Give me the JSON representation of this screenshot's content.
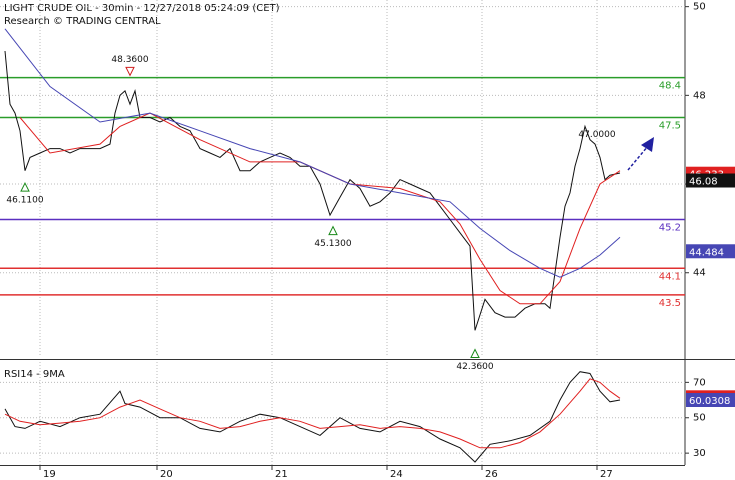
{
  "chart_data": [
    {
      "type": "line",
      "title": "LIGHT CRUDE OIL - 30min - 12/27/2018 05:24:09 (CET)",
      "subtitle": "Research © TRADING CENTRAL",
      "xlim": [
        0,
        137
      ],
      "ylim": [
        42.1,
        50.15
      ],
      "yticks": [
        44,
        46,
        48,
        50
      ],
      "xticks": [
        {
          "value": 8,
          "label": "19"
        },
        {
          "value": 31.4,
          "label": "20"
        },
        {
          "value": 54.4,
          "label": "21"
        },
        {
          "value": 77.4,
          "label": "24"
        },
        {
          "value": 96.4,
          "label": "26"
        },
        {
          "value": 119.4,
          "label": "27"
        }
      ],
      "grid": true,
      "series": [
        {
          "color": "#111111",
          "x": [
            1,
            2,
            3,
            4,
            5,
            6,
            8,
            10,
            12,
            14,
            16,
            18,
            20,
            22,
            23,
            24,
            25,
            26,
            27,
            28,
            30,
            32,
            34,
            36,
            38,
            40,
            42,
            44,
            46,
            48,
            50,
            52,
            54,
            56,
            58,
            60,
            62,
            64,
            66,
            68,
            70,
            72,
            74,
            76,
            78,
            80,
            82,
            84,
            86,
            88,
            90,
            92,
            94,
            95,
            97,
            99,
            101,
            103,
            105,
            107,
            109,
            110,
            111,
            112,
            113,
            114,
            115,
            116,
            117,
            118,
            119,
            120,
            121,
            122,
            124
          ],
          "values": [
            49.0,
            47.8,
            47.6,
            47.2,
            46.3,
            46.6,
            46.7,
            46.8,
            46.8,
            46.7,
            46.8,
            46.8,
            46.8,
            46.9,
            47.6,
            48.0,
            48.1,
            47.8,
            48.1,
            47.5,
            47.5,
            47.4,
            47.5,
            47.3,
            47.2,
            46.8,
            46.7,
            46.6,
            46.8,
            46.3,
            46.3,
            46.5,
            46.6,
            46.7,
            46.6,
            46.4,
            46.4,
            46.0,
            45.3,
            45.7,
            46.1,
            45.9,
            45.5,
            45.6,
            45.8,
            46.1,
            46.0,
            45.9,
            45.8,
            45.5,
            45.2,
            44.9,
            44.6,
            42.7,
            43.4,
            43.1,
            43.0,
            43.0,
            43.2,
            43.3,
            43.3,
            43.2,
            44.0,
            44.8,
            45.5,
            45.8,
            46.4,
            46.8,
            47.3,
            47.0,
            46.9,
            46.6,
            46.1,
            46.2,
            46.25
          ]
        },
        {
          "color": "#e02020",
          "x": [
            4,
            10,
            20,
            24,
            30,
            40,
            50,
            60,
            70,
            80,
            88,
            92,
            96,
            100,
            104,
            108,
            112,
            116,
            120,
            124
          ],
          "values": [
            47.5,
            46.7,
            46.9,
            47.3,
            47.6,
            47.0,
            46.5,
            46.5,
            46.0,
            45.9,
            45.6,
            45.1,
            44.3,
            43.6,
            43.3,
            43.3,
            43.8,
            45.0,
            46.0,
            46.3
          ]
        },
        {
          "color": "#4646b4",
          "x": [
            1,
            10,
            20,
            30,
            40,
            50,
            60,
            70,
            80,
            90,
            96,
            102,
            108,
            112,
            116,
            120,
            124
          ],
          "values": [
            49.5,
            48.2,
            47.4,
            47.6,
            47.2,
            46.8,
            46.5,
            46.0,
            45.8,
            45.6,
            45.0,
            44.5,
            44.1,
            43.9,
            44.1,
            44.4,
            44.8
          ]
        }
      ],
      "levels": [
        {
          "value": 48.4,
          "color": "#2a9d2a"
        },
        {
          "value": 47.5,
          "color": "#2a9d2a"
        },
        {
          "value": 45.2,
          "color": "#5a2fc0"
        },
        {
          "value": 44.1,
          "color": "#e03030"
        },
        {
          "value": 43.5,
          "color": "#e03030"
        }
      ],
      "annotations": [
        {
          "x": 26,
          "y": 48.36,
          "label": "48.3600",
          "marker": "down"
        },
        {
          "x": 5,
          "y": 46.11,
          "label": "46.1100",
          "marker": "up"
        },
        {
          "x": 66.6,
          "y": 45.13,
          "label": "45.1300",
          "marker": "up"
        },
        {
          "x": 95,
          "y": 42.36,
          "label": "42.3600",
          "marker": "up"
        },
        {
          "x": 119.4,
          "y": 47.0,
          "label": "47.0000"
        }
      ],
      "price_tags": [
        {
          "value": 46.233,
          "color": "#e02020"
        },
        {
          "value": 46.08,
          "color": "#111111"
        },
        {
          "value": 44.484,
          "color": "#4646b4"
        }
      ]
    },
    {
      "type": "line",
      "title": "RSI14 - 9MA",
      "xlim": [
        0,
        137
      ],
      "ylim": [
        23.3,
        81.5
      ],
      "yticks": [
        30,
        50,
        70
      ],
      "grid": true,
      "series": [
        {
          "color": "#111111",
          "x": [
            1,
            3,
            5,
            8,
            12,
            16,
            20,
            24,
            25,
            28,
            32,
            36,
            40,
            44,
            48,
            52,
            56,
            60,
            64,
            68,
            72,
            76,
            80,
            84,
            88,
            92,
            95,
            98,
            102,
            106,
            110,
            112,
            114,
            116,
            118,
            120,
            122,
            124
          ],
          "values": [
            55,
            45,
            44,
            48,
            45,
            50,
            52,
            65,
            58,
            56,
            50,
            50,
            44,
            42,
            48,
            52,
            50,
            45,
            40,
            50,
            44,
            42,
            48,
            45,
            38,
            33,
            25,
            35,
            37,
            40,
            48,
            60,
            70,
            76,
            75,
            65,
            59,
            60
          ]
        },
        {
          "color": "#e02020",
          "x": [
            1,
            4,
            8,
            12,
            16,
            20,
            24,
            28,
            32,
            36,
            40,
            44,
            48,
            52,
            56,
            60,
            64,
            68,
            72,
            76,
            80,
            84,
            88,
            92,
            96,
            100,
            104,
            108,
            112,
            116,
            118,
            120,
            122,
            124
          ],
          "values": [
            52,
            48,
            46,
            47,
            48,
            50,
            56,
            60,
            55,
            50,
            48,
            44,
            45,
            48,
            50,
            48,
            44,
            45,
            46,
            44,
            45,
            44,
            42,
            38,
            33,
            33,
            36,
            42,
            52,
            65,
            72,
            70,
            65,
            61
          ]
        }
      ],
      "price_tags": [
        {
          "value": 61.5504,
          "color": "#e02020"
        },
        {
          "value": 60.0308,
          "color": "#4646b4"
        }
      ]
    }
  ]
}
